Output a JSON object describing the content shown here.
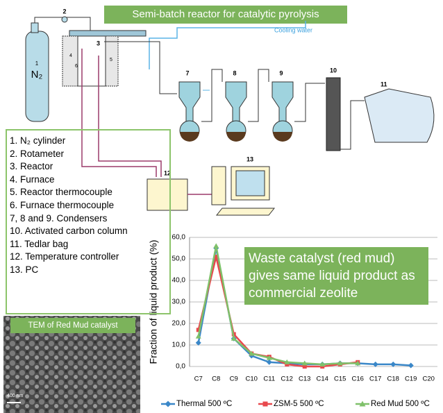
{
  "diagram": {
    "title": "Semi-batch reactor for catalytic pyrolysis",
    "cooling_water": "Cooling water",
    "labels": {
      "cylinder": "1",
      "gas": "N₂",
      "rotameter": "2",
      "reactor": "3",
      "furnace": "4",
      "reactor_tc": "5",
      "furnace_tc": "6",
      "c7": "7",
      "c8": "8",
      "c9": "9",
      "column": "10",
      "bag": "11",
      "controller": "12",
      "pc": "13"
    }
  },
  "legend_list": {
    "items": [
      "1. N₂ cylinder",
      "2. Rotameter",
      "3. Reactor",
      "4. Furnace",
      "5. Reactor thermocouple",
      "6. Furnace thermocouple",
      "7, 8 and 9. Condensers",
      "10. Activated carbon column",
      "11. Tedlar bag",
      "12. Temperature controller",
      "13. PC"
    ]
  },
  "tem": {
    "caption": "TEM of Red Mud catalyst",
    "scale": "400 nm"
  },
  "chart_data": {
    "type": "line",
    "y_label": "Fraction of liquid product (%)",
    "annotation": "Waste catalyst (red mud) gives same liquid product as commercial zeolite",
    "categories": [
      "C7",
      "C8",
      "C9",
      "C10",
      "C11",
      "C12",
      "C13",
      "C14",
      "C15",
      "C16",
      "C17",
      "C18",
      "C19",
      "C20"
    ],
    "ylim": [
      0,
      60
    ],
    "yticks": [
      {
        "value": 0,
        "label": "0,0"
      },
      {
        "value": 10,
        "label": "10,0"
      },
      {
        "value": 20,
        "label": "20,0"
      },
      {
        "value": 30,
        "label": "30,0"
      },
      {
        "value": 40,
        "label": "40,0"
      },
      {
        "value": 50,
        "label": "50,0"
      },
      {
        "value": 60,
        "label": "60,0"
      }
    ],
    "grid": true,
    "series": [
      {
        "name": "Thermal 500 ºC",
        "color": "#3a87c8",
        "marker": "diamond",
        "values": [
          11,
          55,
          13,
          5,
          2,
          1.5,
          1,
          1,
          1.5,
          1.5,
          1,
          1,
          0.5,
          null
        ]
      },
      {
        "name": "ZSM-5 500 ºC",
        "color": "#e8484d",
        "marker": "square",
        "values": [
          17,
          51,
          15,
          6,
          4.5,
          1,
          0,
          0,
          1,
          2,
          null,
          null,
          null,
          null
        ]
      },
      {
        "name": "Red Mud 500 ºC",
        "color": "#7fc16a",
        "marker": "triangle",
        "values": [
          14,
          56,
          13,
          6,
          4,
          2,
          1.5,
          1,
          1.5,
          1.5,
          null,
          null,
          null,
          null
        ]
      }
    ]
  }
}
